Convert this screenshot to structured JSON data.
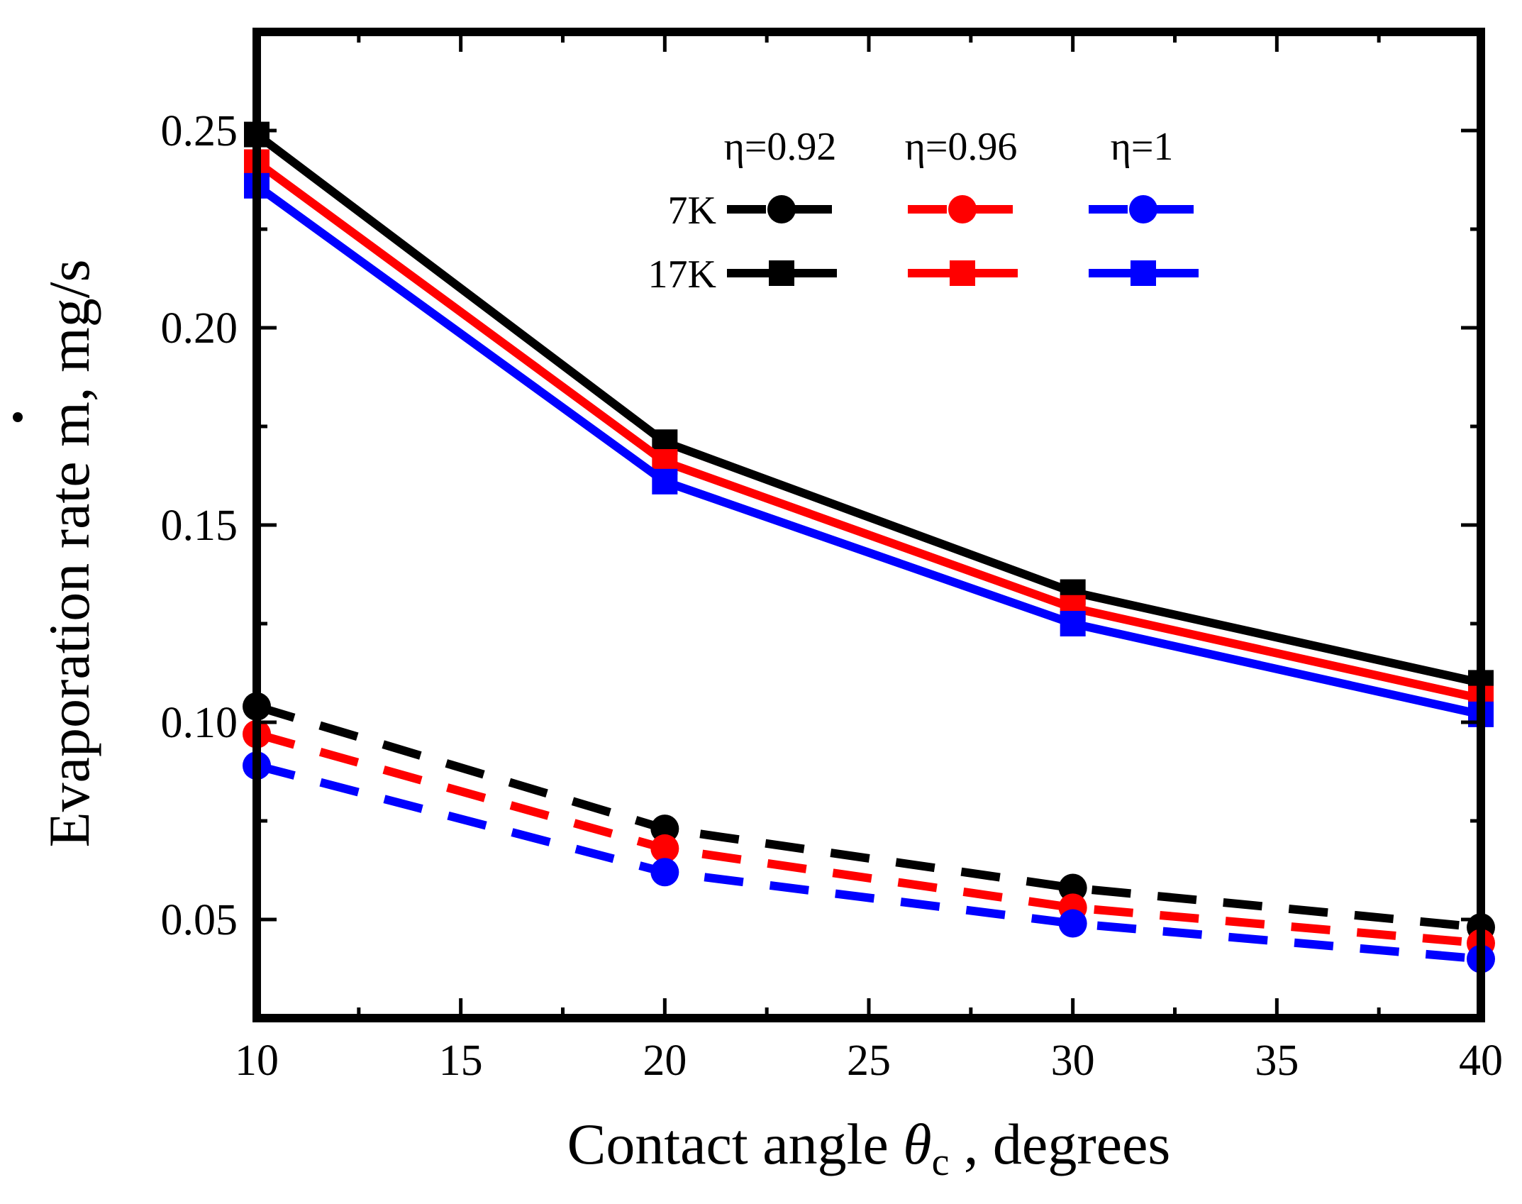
{
  "chart_data": {
    "type": "line",
    "xlabel": "Contact angle θc , degrees",
    "xlabel_parts": {
      "pre": "Contact angle ",
      "symbol": "θ",
      "sub": "c",
      "post": " , degrees"
    },
    "ylabel": "Evaporation rate ṁ, mg/s",
    "ylabel_parts": {
      "pre": "Evaporation rate ",
      "symbol": "m",
      "post": ", mg/s"
    },
    "xlim": [
      10,
      40
    ],
    "ylim": [
      0.025,
      0.275
    ],
    "xticks": [
      10,
      15,
      20,
      25,
      30,
      35,
      40
    ],
    "xtick_labels": [
      "10",
      "15",
      "20",
      "25",
      "30",
      "35",
      "40"
    ],
    "yticks": [
      0.05,
      0.1,
      0.15,
      0.2,
      0.25
    ],
    "ytick_labels": [
      "0.05",
      "0.10",
      "0.15",
      "0.20",
      "0.25"
    ],
    "grid": false,
    "legend": {
      "placement": "top-right",
      "column_headers": [
        "η=0.92",
        "η=0.96",
        "η=1"
      ],
      "row_labels": [
        "7K",
        "17K"
      ]
    },
    "x": [
      10,
      20,
      30,
      40
    ],
    "series": [
      {
        "row": "7K",
        "column": "η=0.92",
        "color": "#000000",
        "style": "dashed",
        "marker": "circle",
        "values": [
          0.104,
          0.073,
          0.058,
          0.048
        ]
      },
      {
        "row": "7K",
        "column": "η=0.96",
        "color": "#ff0000",
        "style": "dashed",
        "marker": "circle",
        "values": [
          0.097,
          0.068,
          0.053,
          0.044
        ]
      },
      {
        "row": "7K",
        "column": "η=1",
        "color": "#0000ff",
        "style": "dashed",
        "marker": "circle",
        "values": [
          0.089,
          0.062,
          0.049,
          0.04
        ]
      },
      {
        "row": "17K",
        "column": "η=0.92",
        "color": "#000000",
        "style": "solid",
        "marker": "square",
        "values": [
          0.249,
          0.171,
          0.133,
          0.11
        ]
      },
      {
        "row": "17K",
        "column": "η=0.96",
        "color": "#ff0000",
        "style": "solid",
        "marker": "square",
        "values": [
          0.242,
          0.166,
          0.129,
          0.106
        ]
      },
      {
        "row": "17K",
        "column": "η=1",
        "color": "#0000ff",
        "style": "solid",
        "marker": "square",
        "values": [
          0.236,
          0.161,
          0.125,
          0.102
        ]
      }
    ]
  }
}
